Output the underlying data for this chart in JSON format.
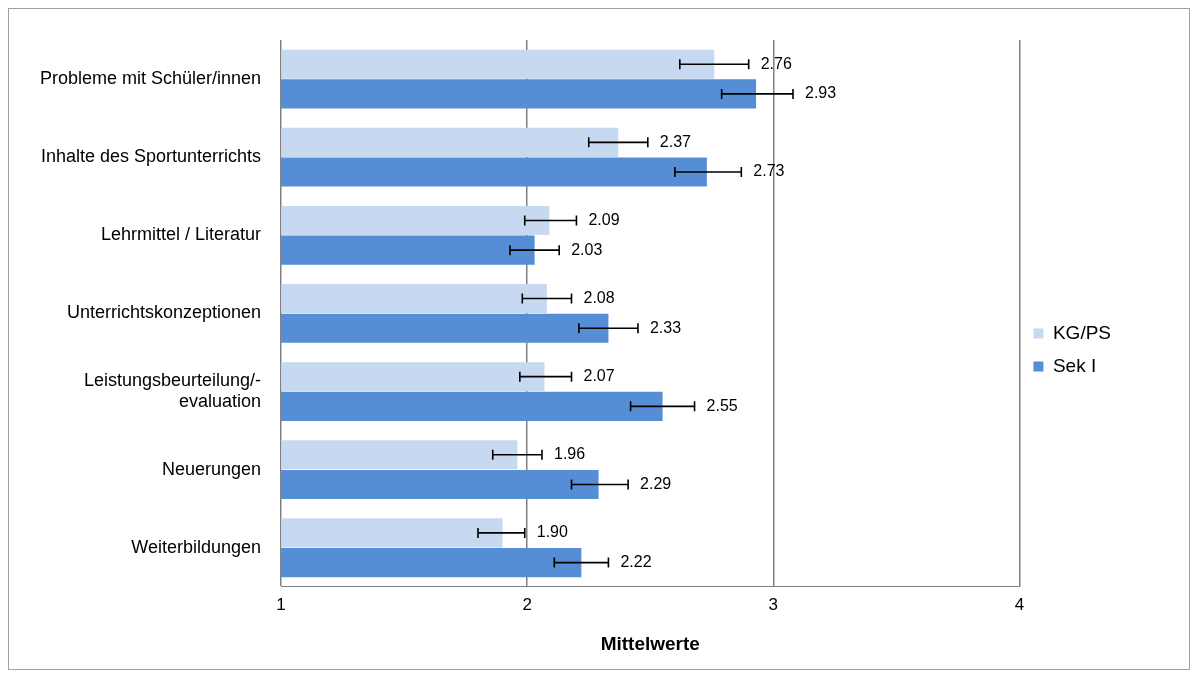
{
  "chart_data": {
    "type": "bar",
    "orientation": "horizontal",
    "xlabel": "Mittelwerte",
    "categories": [
      "Probleme mit Schüler/innen",
      "Inhalte des Sportunterrichts",
      "Lehrmittel / Literatur",
      "Unterrichtskonzeptionen",
      "Leistungsbeurteilung/-evaluation",
      "Neuerungen",
      "Weiterbildungen"
    ],
    "series": [
      {
        "name": "KG/PS",
        "color": "#c6d9f1",
        "values": [
          2.76,
          2.37,
          2.09,
          2.08,
          2.07,
          1.96,
          1.9
        ],
        "errors": [
          [
            2.62,
            2.9
          ],
          [
            2.25,
            2.49
          ],
          [
            1.99,
            2.2
          ],
          [
            1.98,
            2.18
          ],
          [
            1.97,
            2.18
          ],
          [
            1.86,
            2.06
          ],
          [
            1.8,
            1.99
          ]
        ],
        "value_labels": [
          "2.76",
          "2.37",
          "2.09",
          "2.08",
          "2.07",
          "1.96",
          "1.90"
        ]
      },
      {
        "name": "Sek I",
        "color": "#558ed5",
        "values": [
          2.93,
          2.73,
          2.03,
          2.33,
          2.55,
          2.29,
          2.22
        ],
        "errors": [
          [
            2.79,
            3.08
          ],
          [
            2.6,
            2.87
          ],
          [
            1.93,
            2.13
          ],
          [
            2.21,
            2.45
          ],
          [
            2.42,
            2.68
          ],
          [
            2.18,
            2.41
          ],
          [
            2.11,
            2.33
          ]
        ],
        "value_labels": [
          "2.93",
          "2.73",
          "2.03",
          "2.33",
          "2.55",
          "2.29",
          "2.22"
        ]
      }
    ],
    "xlim": [
      1,
      4
    ],
    "xticks": [
      1,
      2,
      3,
      4
    ],
    "grid": "x",
    "legend": "right"
  }
}
